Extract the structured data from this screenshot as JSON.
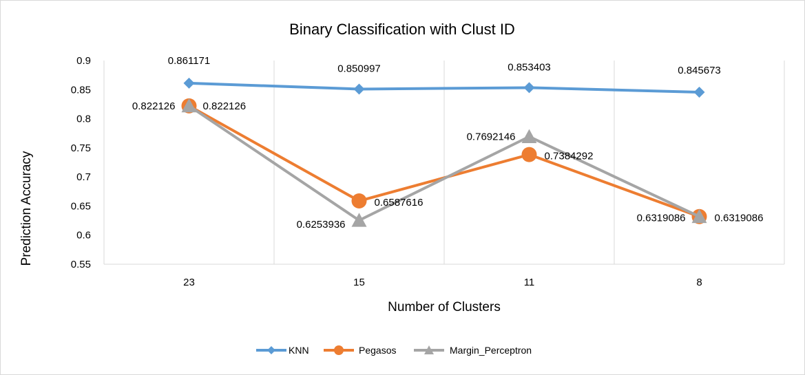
{
  "chart_data": {
    "type": "line",
    "title": "Binary Classification with Clust ID",
    "xlabel": "Number of Clusters",
    "ylabel": "Prediction Accuracy",
    "categories": [
      "23",
      "15",
      "11",
      "8"
    ],
    "ylim": [
      0.55,
      0.9
    ],
    "yticks": [
      "0.9",
      "0.85",
      "0.8",
      "0.75",
      "0.7",
      "0.65",
      "0.6",
      "0.55"
    ],
    "ytick_values": [
      0.9,
      0.85,
      0.8,
      0.75,
      0.7,
      0.65,
      0.6,
      0.55
    ],
    "grid": "vertical",
    "legend_position": "bottom",
    "series": [
      {
        "name": "KNN",
        "color": "#5b9bd5",
        "marker": "diamond",
        "values": [
          0.861171,
          0.850997,
          0.853403,
          0.845673
        ],
        "labels": [
          "0.861171",
          "0.850997",
          "0.853403",
          "0.845673"
        ]
      },
      {
        "name": "Pegasos",
        "color": "#ed7d31",
        "marker": "circle",
        "values": [
          0.822126,
          0.6587616,
          0.7384292,
          0.6319086
        ],
        "labels": [
          "0.822126",
          "0.6587616",
          "0.7384292",
          "0.6319086"
        ]
      },
      {
        "name": "Margin_Perceptron",
        "color": "#a5a5a5",
        "marker": "triangle",
        "values": [
          0.822126,
          0.6253936,
          0.7692146,
          0.6319086
        ],
        "labels": [
          "0.822126",
          "0.6253936",
          "0.7692146",
          "0.6319086"
        ]
      }
    ]
  }
}
